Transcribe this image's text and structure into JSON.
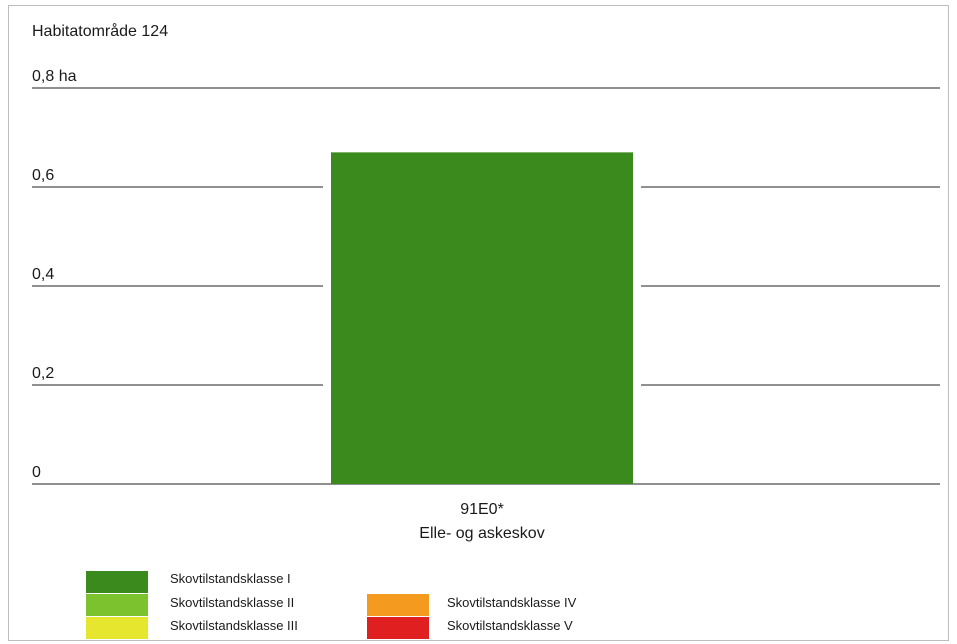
{
  "chart_data": {
    "type": "bar",
    "title": "Habitatområde 124",
    "yunit": "ha",
    "ylim": [
      0,
      0.8
    ],
    "yticks": [
      {
        "value": 0,
        "label": "0"
      },
      {
        "value": 0.2,
        "label": "0,2"
      },
      {
        "value": 0.4,
        "label": "0,4"
      },
      {
        "value": 0.6,
        "label": "0,6"
      },
      {
        "value": 0.8,
        "label": "0,8 ha"
      }
    ],
    "categories": [
      {
        "code": "91E0*",
        "name": "Elle- og askeskov"
      }
    ],
    "series": [
      {
        "name": "Skovtilstandsklasse I",
        "color": "#3b8a1e",
        "values": [
          0.67
        ]
      },
      {
        "name": "Skovtilstandsklasse II",
        "color": "#7cc22e",
        "values": [
          0
        ]
      },
      {
        "name": "Skovtilstandsklasse III",
        "color": "#e6e62e",
        "values": [
          0
        ]
      },
      {
        "name": "Skovtilstandsklasse IV",
        "color": "#f49a1e",
        "values": [
          0
        ]
      },
      {
        "name": "Skovtilstandsklasse V",
        "color": "#e02020",
        "values": [
          0
        ]
      }
    ],
    "grid": true,
    "legend_position": "bottom"
  }
}
